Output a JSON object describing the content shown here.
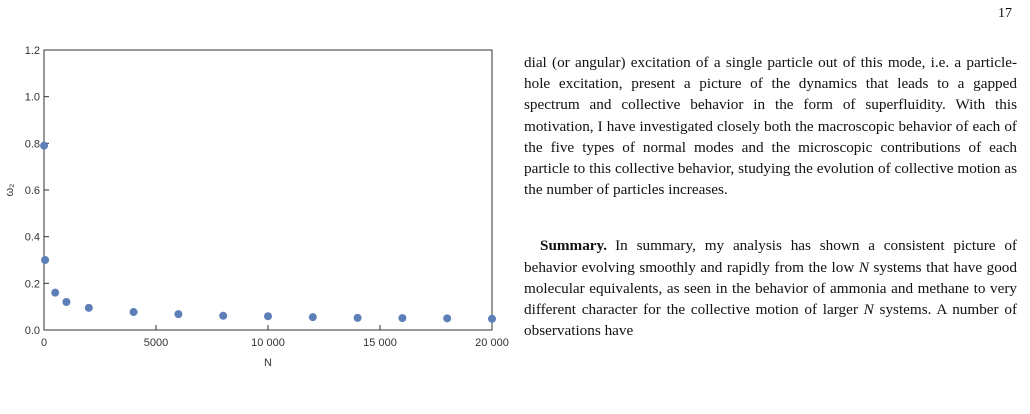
{
  "page": {
    "number": "17"
  },
  "figure": {
    "chart_data": {
      "type": "scatter",
      "xlabel": "N",
      "ylabel": "ω₂",
      "xlim": [
        0,
        20000
      ],
      "ylim": [
        0,
        1.2
      ],
      "x_ticks": [
        0,
        5000,
        10000,
        15000,
        20000
      ],
      "x_tick_labels": [
        "0",
        "5000",
        "10 000",
        "15 000",
        "20 000"
      ],
      "y_ticks": [
        0,
        0.2,
        0.4,
        0.6,
        0.8,
        1.0,
        1.2
      ],
      "y_tick_labels": [
        "0.0",
        "0.2",
        "0.4",
        "0.6",
        "0.8",
        "1.0",
        "1.2"
      ],
      "grid": false,
      "marker_color": "#5b7fb6",
      "series": [
        {
          "x": [
            3,
            50,
            500,
            1000,
            2000,
            4000,
            6000,
            8000,
            10000,
            12000,
            14000,
            16000,
            18000,
            20000
          ],
          "y": [
            0.79,
            0.3,
            0.16,
            0.12,
            0.095,
            0.077,
            0.068,
            0.061,
            0.059,
            0.055,
            0.052,
            0.051,
            0.05,
            0.048
          ]
        }
      ]
    }
  },
  "text": {
    "para1": "dial (or angular) excitation of a single particle out of this mode, i.e. a particle-hole excitation, present a picture of the dynamics that leads to a gapped spectrum and collective behavior in the form of superfluidity. With this motivation, I have investigated closely both the macroscopic behavior of each of the five types of normal modes and the microscopic contributions of each particle to this collective behavior, studying the evolution of collective motion as the number of particles increases.",
    "summary_heading": "Summary.",
    "para2_a": "In summary, my analysis has shown a consistent picture of behavior evolving smoothly and rapidly from the low ",
    "para2_N1": "N",
    "para2_b": " systems that have good molecular equivalents, as seen in the behavior of ammonia and methane to very different character for the collective motion of larger ",
    "para2_N2": "N",
    "para2_c": " systems. A number of observations have"
  }
}
